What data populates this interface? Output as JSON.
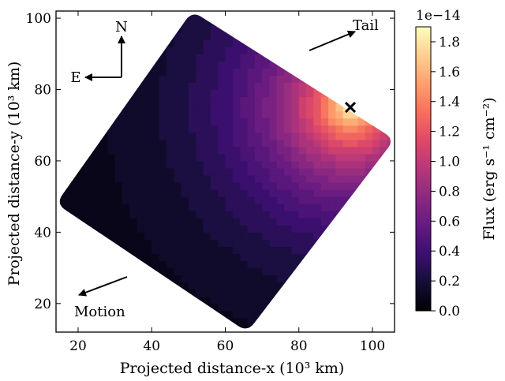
{
  "chart_data": {
    "type": "heatmap",
    "title": "",
    "xlabel": "Projected distance-x (10³ km)",
    "ylabel": "Projected distance-y (10³ km)",
    "xlim": [
      14,
      106
    ],
    "ylim": [
      12,
      102
    ],
    "xticks": [
      "20",
      "40",
      "60",
      "80",
      "100"
    ],
    "yticks": [
      "20",
      "40",
      "60",
      "80",
      "100"
    ],
    "x_tick_values": [
      20,
      40,
      60,
      80,
      100
    ],
    "y_tick_values": [
      20,
      40,
      60,
      80,
      100
    ],
    "colorbar": {
      "label": "Flux (erg s⁻¹ cm⁻²)",
      "offset_text": "1e−14",
      "range": [
        0.0,
        1.9
      ],
      "tick_values": [
        0.0,
        0.2,
        0.4,
        0.6,
        0.8,
        1.0,
        1.2,
        1.4,
        1.6,
        1.8
      ],
      "tick_labels": [
        "0.0",
        "0.2",
        "0.4",
        "0.6",
        "0.8",
        "1.0",
        "1.2",
        "1.4",
        "1.6",
        "1.8"
      ],
      "colormap": "magma"
    },
    "peak": {
      "x": 94,
      "y": 75,
      "flux": 1.9
    },
    "emission_region_corners": [
      [
        51,
        102
      ],
      [
        106,
        66
      ],
      [
        66,
        12
      ],
      [
        14,
        48
      ]
    ],
    "annotations": {
      "north": "N",
      "east": "E",
      "tail": "Tail",
      "motion": "Motion"
    }
  }
}
